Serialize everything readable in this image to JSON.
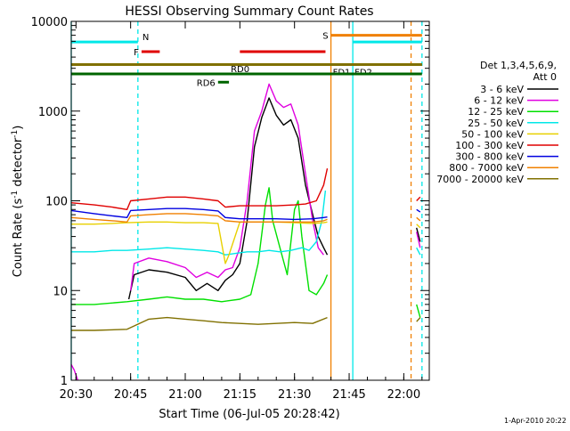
{
  "chart_data": {
    "type": "line",
    "title": "HESSI Observing Summary Count Rates",
    "xlabel": "Start Time (06-Jul-05 20:28:42)",
    "ylabel": "Count Rate (s⁻¹ detector⁻¹)",
    "ylabel_parts": [
      "Count Rate (s",
      "-1",
      " detector",
      "-1",
      ")"
    ],
    "footer": "1-Apr-2010 20:22",
    "y_scale": "log",
    "xlim": [
      "20:28:42",
      "22:07:00"
    ],
    "ylim": [
      1,
      10000
    ],
    "x_ticks": [
      "20:30",
      "20:45",
      "21:00",
      "21:15",
      "21:30",
      "21:45",
      "22:00"
    ],
    "y_ticks": [
      "1",
      "10",
      "100",
      "1000",
      "10000"
    ],
    "legend": {
      "header": [
        "Det 1,3,4,5,6,9,",
        "Att 0"
      ],
      "position": "right",
      "entries": [
        {
          "label": "3 - 6 keV",
          "color": "#000000"
        },
        {
          "label": "6 - 12 keV",
          "color": "#e000e0"
        },
        {
          "label": "12 - 25 keV",
          "color": "#00e000"
        },
        {
          "label": "25 - 50 keV",
          "color": "#00e8e8"
        },
        {
          "label": "50 - 100 keV",
          "color": "#e8d000"
        },
        {
          "label": "100 - 300 keV",
          "color": "#e00000"
        },
        {
          "label": "300 - 800 keV",
          "color": "#0000e0"
        },
        {
          "label": "800 - 7000 keV",
          "color": "#f08000"
        },
        {
          "label": "7000 - 20000 keV",
          "color": "#807000"
        }
      ]
    },
    "series": [
      {
        "name": "3 - 6 keV",
        "color": "#000000",
        "segments": [
          [
            [
              "20:44:30",
              8
            ],
            [
              "20:46:00",
              15
            ],
            [
              "20:50:00",
              17
            ],
            [
              "20:55:00",
              16
            ],
            [
              "21:00:00",
              14
            ],
            [
              "21:03:00",
              10
            ],
            [
              "21:06:00",
              12
            ],
            [
              "21:09:00",
              10
            ],
            [
              "21:11:00",
              13
            ],
            [
              "21:13:00",
              15
            ],
            [
              "21:15:00",
              20
            ],
            [
              "21:17:00",
              60
            ],
            [
              "21:19:00",
              400
            ],
            [
              "21:21:00",
              850
            ],
            [
              "21:23:00",
              1400
            ],
            [
              "21:25:00",
              900
            ],
            [
              "21:27:00",
              700
            ],
            [
              "21:29:00",
              800
            ],
            [
              "21:31:00",
              500
            ],
            [
              "21:33:00",
              150
            ],
            [
              "21:35:00",
              70
            ],
            [
              "21:36:30",
              40
            ],
            [
              "21:38:00",
              30
            ],
            [
              "21:39:00",
              25
            ]
          ],
          [
            [
              "22:03:30",
              50
            ],
            [
              "22:04:30",
              35
            ]
          ]
        ]
      },
      {
        "name": "6 - 12 keV",
        "color": "#e000e0",
        "segments": [
          [
            [
              "20:28:42",
              1.5
            ],
            [
              "20:29:30",
              1.3
            ],
            [
              "20:30:30",
              1.0
            ]
          ],
          [
            [
              "20:45:00",
              10
            ],
            [
              "20:46:00",
              20
            ],
            [
              "20:50:00",
              23
            ],
            [
              "20:55:00",
              21
            ],
            [
              "21:00:00",
              18
            ],
            [
              "21:03:00",
              14
            ],
            [
              "21:06:00",
              16
            ],
            [
              "21:09:00",
              14
            ],
            [
              "21:11:00",
              17
            ],
            [
              "21:13:00",
              18
            ],
            [
              "21:15:00",
              30
            ],
            [
              "21:17:00",
              100
            ],
            [
              "21:19:00",
              600
            ],
            [
              "21:21:00",
              1000
            ],
            [
              "21:23:00",
              2000
            ],
            [
              "21:25:00",
              1300
            ],
            [
              "21:27:00",
              1100
            ],
            [
              "21:29:00",
              1200
            ],
            [
              "21:31:00",
              700
            ],
            [
              "21:33:00",
              200
            ],
            [
              "21:35:00",
              60
            ],
            [
              "21:36:30",
              30
            ],
            [
              "21:38:00",
              25
            ]
          ],
          [
            [
              "22:03:30",
              45
            ],
            [
              "22:04:30",
              30
            ]
          ]
        ]
      },
      {
        "name": "12 - 25 keV",
        "color": "#00e000",
        "segments": [
          [
            [
              "20:28:42",
              7
            ],
            [
              "20:35:00",
              7
            ],
            [
              "20:44:00",
              7.5
            ],
            [
              "20:50:00",
              8
            ],
            [
              "20:55:00",
              8.5
            ],
            [
              "21:00:00",
              8
            ],
            [
              "21:05:00",
              8
            ],
            [
              "21:10:00",
              7.5
            ],
            [
              "21:15:00",
              8
            ],
            [
              "21:18:00",
              9
            ],
            [
              "21:20:00",
              20
            ],
            [
              "21:22:00",
              90
            ],
            [
              "21:23:00",
              140
            ],
            [
              "21:24:00",
              60
            ],
            [
              "21:26:00",
              30
            ],
            [
              "21:28:00",
              15
            ],
            [
              "21:30:00",
              80
            ],
            [
              "21:31:00",
              100
            ],
            [
              "21:32:00",
              40
            ],
            [
              "21:34:00",
              10
            ],
            [
              "21:36:00",
              9
            ],
            [
              "21:38:00",
              12
            ],
            [
              "21:39:00",
              15
            ]
          ],
          [
            [
              "22:03:30",
              7
            ],
            [
              "22:04:30",
              5
            ]
          ]
        ]
      },
      {
        "name": "25 - 50 keV",
        "color": "#00e8e8",
        "segments": [
          [
            [
              "20:28:42",
              27
            ],
            [
              "20:35:00",
              27
            ],
            [
              "20:40:00",
              28
            ],
            [
              "20:44:00",
              28
            ],
            [
              "20:50:00",
              29
            ],
            [
              "20:55:00",
              30
            ],
            [
              "21:00:00",
              29
            ],
            [
              "21:05:00",
              28
            ],
            [
              "21:09:00",
              27
            ],
            [
              "21:11:00",
              25
            ],
            [
              "21:14:00",
              26
            ],
            [
              "21:17:00",
              27
            ],
            [
              "21:20:00",
              27
            ],
            [
              "21:23:00",
              28
            ],
            [
              "21:26:00",
              27
            ],
            [
              "21:29:00",
              28
            ],
            [
              "21:32:00",
              30
            ],
            [
              "21:34:00",
              28
            ],
            [
              "21:36:00",
              35
            ],
            [
              "21:37:30",
              60
            ],
            [
              "21:38:30",
              130
            ]
          ],
          [
            [
              "22:03:30",
              30
            ],
            [
              "22:04:30",
              25
            ]
          ]
        ]
      },
      {
        "name": "50 - 100 keV",
        "color": "#e8d000",
        "segments": [
          [
            [
              "20:28:42",
              55
            ],
            [
              "20:35:00",
              55
            ],
            [
              "20:40:00",
              56
            ],
            [
              "20:44:00",
              57
            ],
            [
              "20:50:00",
              58
            ],
            [
              "20:55:00",
              58
            ],
            [
              "21:00:00",
              57
            ],
            [
              "21:05:00",
              57
            ],
            [
              "21:09:00",
              56
            ],
            [
              "21:11:00",
              20
            ],
            [
              "21:12:00",
              25
            ],
            [
              "21:15:00",
              58
            ],
            [
              "21:20:00",
              58
            ],
            [
              "21:25:00",
              58
            ],
            [
              "21:30:00",
              57
            ],
            [
              "21:35:00",
              56
            ],
            [
              "21:38:00",
              57
            ],
            [
              "21:39:00",
              58
            ]
          ],
          [
            [
              "22:03:30",
              55
            ],
            [
              "22:04:30",
              50
            ]
          ]
        ]
      },
      {
        "name": "100 - 300 keV",
        "color": "#e00000",
        "segments": [
          [
            [
              "20:28:42",
              95
            ],
            [
              "20:35:00",
              90
            ],
            [
              "20:40:00",
              85
            ],
            [
              "20:44:00",
              80
            ],
            [
              "20:45:00",
              100
            ],
            [
              "20:50:00",
              105
            ],
            [
              "20:55:00",
              110
            ],
            [
              "21:00:00",
              110
            ],
            [
              "21:05:00",
              105
            ],
            [
              "21:09:00",
              100
            ],
            [
              "21:11:00",
              85
            ],
            [
              "21:15:00",
              88
            ],
            [
              "21:20:00",
              88
            ],
            [
              "21:25:00",
              88
            ],
            [
              "21:30:00",
              90
            ],
            [
              "21:33:00",
              92
            ],
            [
              "21:36:00",
              100
            ],
            [
              "21:38:00",
              150
            ],
            [
              "21:39:00",
              230
            ]
          ],
          [
            [
              "22:03:30",
              100
            ],
            [
              "22:04:30",
              110
            ]
          ]
        ]
      },
      {
        "name": "300 - 800 keV",
        "color": "#0000e0",
        "segments": [
          [
            [
              "20:28:42",
              78
            ],
            [
              "20:35:00",
              72
            ],
            [
              "20:40:00",
              68
            ],
            [
              "20:44:00",
              65
            ],
            [
              "20:45:00",
              78
            ],
            [
              "20:50:00",
              80
            ],
            [
              "20:55:00",
              82
            ],
            [
              "21:00:00",
              82
            ],
            [
              "21:05:00",
              80
            ],
            [
              "21:09:00",
              77
            ],
            [
              "21:11:00",
              65
            ],
            [
              "21:15:00",
              63
            ],
            [
              "21:20:00",
              63
            ],
            [
              "21:25:00",
              63
            ],
            [
              "21:30:00",
              62
            ],
            [
              "21:35:00",
              63
            ],
            [
              "21:38:00",
              65
            ],
            [
              "21:39:00",
              66
            ]
          ],
          [
            [
              "22:03:30",
              80
            ],
            [
              "22:04:30",
              75
            ]
          ]
        ]
      },
      {
        "name": "800 - 7000 keV",
        "color": "#f08000",
        "segments": [
          [
            [
              "20:28:42",
              65
            ],
            [
              "20:35:00",
              62
            ],
            [
              "20:40:00",
              60
            ],
            [
              "20:44:00",
              58
            ],
            [
              "20:45:00",
              68
            ],
            [
              "20:50:00",
              70
            ],
            [
              "20:55:00",
              72
            ],
            [
              "21:00:00",
              72
            ],
            [
              "21:05:00",
              70
            ],
            [
              "21:09:00",
              68
            ],
            [
              "21:11:00",
              60
            ],
            [
              "21:15:00",
              58
            ],
            [
              "21:20:00",
              58
            ],
            [
              "21:25:00",
              58
            ],
            [
              "21:30:00",
              58
            ],
            [
              "21:35:00",
              58
            ],
            [
              "21:38:00",
              60
            ],
            [
              "21:39:00",
              62
            ]
          ],
          [
            [
              "22:03:30",
              65
            ],
            [
              "22:04:30",
              60
            ]
          ]
        ]
      },
      {
        "name": "7000 - 20000 keV",
        "color": "#807000",
        "segments": [
          [
            [
              "20:28:42",
              3.6
            ],
            [
              "20:35:00",
              3.6
            ],
            [
              "20:44:00",
              3.7
            ],
            [
              "20:50:00",
              4.8
            ],
            [
              "20:55:00",
              5.0
            ],
            [
              "21:00:00",
              4.8
            ],
            [
              "21:05:00",
              4.6
            ],
            [
              "21:10:00",
              4.4
            ],
            [
              "21:15:00",
              4.3
            ],
            [
              "21:20:00",
              4.2
            ],
            [
              "21:25:00",
              4.3
            ],
            [
              "21:30:00",
              4.4
            ],
            [
              "21:35:00",
              4.3
            ],
            [
              "21:39:00",
              5.0
            ]
          ],
          [
            [
              "22:03:30",
              4.5
            ],
            [
              "22:04:30",
              5.0
            ]
          ]
        ]
      }
    ],
    "vertical_markers": [
      {
        "time": "20:28:42",
        "color": "#00e8e8",
        "style": "solid"
      },
      {
        "time": "20:47:00",
        "color": "#00e8e8",
        "style": "dashed"
      },
      {
        "time": "21:40:00",
        "color": "#f08000",
        "style": "solid"
      },
      {
        "time": "21:46:00",
        "color": "#00e8e8",
        "style": "solid"
      },
      {
        "time": "22:02:00",
        "color": "#f08000",
        "style": "dashed"
      },
      {
        "time": "22:05:00",
        "color": "#00e8e8",
        "style": "dashed"
      }
    ],
    "flag_bars": [
      {
        "label": "N",
        "color": "#00e8e8",
        "start": "20:28:42",
        "end": "20:47:00",
        "y": 5900,
        "label_pos": "end-right"
      },
      {
        "label": "N",
        "color": "#00e8e8",
        "start": "21:46:00",
        "end": "22:05:00",
        "y": 5900,
        "label_pos": "none"
      },
      {
        "label": "F",
        "color": "#e00000",
        "start": "20:48:00",
        "end": "20:53:00",
        "y": 4600,
        "label_pos": "left"
      },
      {
        "label": "F",
        "color": "#e00000",
        "start": "21:15:00",
        "end": "21:38:30",
        "y": 4600,
        "label_pos": "none"
      },
      {
        "label": "S",
        "color": "#f08000",
        "start": "21:40:00",
        "end": "22:05:00",
        "y": 7000,
        "label_pos": "left"
      },
      {
        "label": "FD1",
        "color": "#807000",
        "start": "20:28:42",
        "end": "22:05:00",
        "y": 3300,
        "label_pos": "below-21:40"
      },
      {
        "label": "FD2",
        "color": "#807000",
        "start": "20:28:42",
        "end": "22:05:00",
        "y": 3300,
        "label_pos": "below-21:46"
      },
      {
        "label": "RD0",
        "color": "#006400",
        "start": "20:28:42",
        "end": "22:05:00",
        "y": 2600,
        "label_pos": "above-21:12"
      },
      {
        "label": "RD6",
        "color": "#006400",
        "start": "21:09:00",
        "end": "21:12:00",
        "y": 2100,
        "label_pos": "left"
      }
    ]
  }
}
